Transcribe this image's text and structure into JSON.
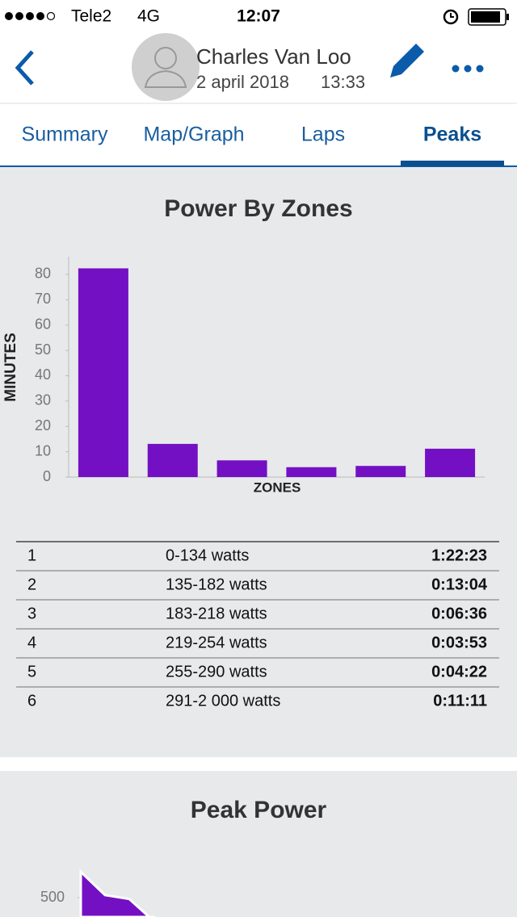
{
  "status_bar": {
    "carrier": "Tele2",
    "network": "4G",
    "time": "12:07"
  },
  "header": {
    "name": "Charles Van Loo",
    "date": "2 april 2018",
    "time": "13:33"
  },
  "tabs": [
    "Summary",
    "Map/Graph",
    "Laps",
    "Peaks"
  ],
  "active_tab": "Peaks",
  "chart_data": [
    {
      "type": "bar",
      "title": "Power By Zones",
      "y_label": "MINUTES",
      "x_label": "ZONES",
      "values": [
        82.4,
        13.1,
        6.6,
        3.9,
        4.4,
        11.2
      ],
      "color": "#7410c4",
      "ylim": [
        0,
        87
      ],
      "yticks": [
        0,
        10,
        20,
        30,
        40,
        50,
        60,
        70,
        80
      ]
    },
    {
      "type": "area",
      "title": "Peak Power",
      "values": [
        600,
        510,
        495,
        410
      ],
      "color": "#7410c4",
      "ylim": [
        0,
        650
      ],
      "yticks": [
        500
      ]
    }
  ],
  "table": {
    "rows": [
      [
        "1",
        "0-134 watts",
        "1:22:23"
      ],
      [
        "2",
        "135-182 watts",
        "0:13:04"
      ],
      [
        "3",
        "183-218 watts",
        "0:06:36"
      ],
      [
        "4",
        "219-254 watts",
        "0:03:53"
      ],
      [
        "5",
        "255-290 watts",
        "0:04:22"
      ],
      [
        "6",
        "291-2 000 watts",
        "0:11:11"
      ]
    ]
  }
}
